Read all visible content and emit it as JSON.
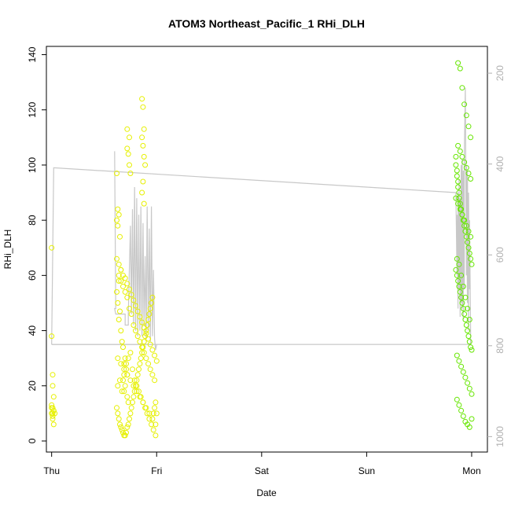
{
  "chart_data": {
    "type": "scatter",
    "title": "ATOM3 Northeast_Pacific_1 RHi_DLH",
    "xlabel": "Date",
    "ylabel": "RHi_DLH",
    "x_ticks": [
      "Thu",
      "Fri",
      "Sat",
      "Sun",
      "Mon"
    ],
    "xlim": [
      -0.05,
      4.15
    ],
    "ylim": [
      -4,
      143
    ],
    "y_ticks": [
      0,
      20,
      40,
      60,
      80,
      100,
      120,
      140
    ],
    "y2_ticks": [
      200,
      400,
      600,
      800,
      1000
    ],
    "y2lim": [
      1034,
      141
    ],
    "y2_reversed": true,
    "y2_color": "#b0b0b0",
    "grid": false,
    "colors": {
      "low_points": "#e6f000",
      "high_points": "#66e600",
      "line": "#c8c8c8"
    },
    "series": [
      {
        "points_x": [
          0.0,
          0.0,
          0.01,
          0.01,
          0.02,
          0.0,
          0.01,
          0.02,
          0.01,
          0.0,
          0.01,
          0.02,
          0.0,
          0.01,
          0.02,
          0.03,
          0.62,
          0.63,
          0.64,
          0.62,
          0.63,
          0.65,
          0.66,
          0.64,
          0.62,
          0.63,
          0.65,
          0.64,
          0.66,
          0.67,
          0.68,
          0.7,
          0.69,
          0.71,
          0.72,
          0.68,
          0.7,
          0.69,
          0.72,
          0.73,
          0.62,
          0.63,
          0.64,
          0.65,
          0.66,
          0.67,
          0.68,
          0.69,
          0.7,
          0.71,
          0.72,
          0.73,
          0.74,
          0.75,
          0.76,
          0.77,
          0.78,
          0.79,
          0.8,
          0.81,
          0.82,
          0.83,
          0.84,
          0.85,
          0.86,
          0.87,
          0.88,
          0.89,
          0.9,
          0.91,
          0.92,
          0.93,
          0.94,
          0.95,
          0.96,
          0.97,
          0.98,
          0.99,
          1.0,
          0.63,
          0.65,
          0.67,
          0.69,
          0.71,
          0.73,
          0.75,
          0.77,
          0.79,
          0.81,
          0.83,
          0.85,
          0.87,
          0.89,
          0.91,
          0.93,
          0.95,
          0.97,
          0.99,
          0.72,
          0.74,
          0.72,
          0.73,
          0.74,
          0.75,
          0.86,
          0.87,
          0.88,
          0.86,
          0.87,
          0.88,
          0.89,
          0.87,
          0.86,
          0.88,
          0.64,
          0.66,
          0.68,
          0.7,
          0.72,
          0.74,
          0.76,
          0.78,
          0.8,
          0.82,
          0.84,
          0.86,
          0.88,
          0.9,
          0.92,
          0.94,
          0.96,
          0.98,
          0.63,
          0.66,
          0.69,
          0.72,
          0.75,
          0.78,
          0.81,
          0.84,
          0.87,
          0.9,
          0.93,
          0.96,
          0.99,
          0.62,
          0.64,
          0.66,
          0.68,
          0.7,
          0.72,
          0.74,
          0.76,
          0.78,
          0.8,
          0.82,
          0.84,
          0.86,
          0.88,
          0.9,
          0.92,
          0.94,
          0.96,
          0.98,
          1.0
        ],
        "points_y": [
          70,
          38,
          24,
          20,
          16,
          13,
          12,
          11,
          10,
          10,
          9,
          11,
          12,
          8,
          6,
          10,
          97,
          84,
          82,
          80,
          78,
          74,
          62,
          58,
          54,
          50,
          47,
          44,
          40,
          36,
          34,
          30,
          28,
          26,
          24,
          22,
          20,
          18,
          16,
          14,
          12,
          10,
          8,
          6,
          5,
          4,
          3,
          2,
          2,
          3,
          5,
          6,
          8,
          10,
          12,
          14,
          16,
          18,
          20,
          22,
          24,
          26,
          28,
          30,
          32,
          34,
          36,
          38,
          40,
          42,
          44,
          46,
          48,
          50,
          52,
          10,
          12,
          14,
          10,
          20,
          22,
          18,
          24,
          28,
          30,
          32,
          26,
          22,
          20,
          18,
          16,
          14,
          12,
          10,
          8,
          6,
          4,
          2,
          113,
          110,
          106,
          104,
          100,
          97,
          124,
          121,
          113,
          110,
          107,
          103,
          100,
          94,
          90,
          86,
          60,
          58,
          56,
          54,
          52,
          48,
          46,
          42,
          40,
          38,
          36,
          34,
          32,
          30,
          28,
          26,
          24,
          22,
          30,
          28,
          26,
          24,
          22,
          20,
          18,
          16,
          14,
          12,
          10,
          8,
          6,
          66,
          64,
          62,
          60,
          59,
          57,
          55,
          53,
          51,
          49,
          47,
          45,
          43,
          41,
          39,
          37,
          35,
          33,
          31,
          29
        ],
        "color": "#e6f000"
      },
      {
        "points_x": [
          3.85,
          3.85,
          3.86,
          3.86,
          3.87,
          3.87,
          3.88,
          3.88,
          3.89,
          3.9,
          3.91,
          3.92,
          3.93,
          3.94,
          3.95,
          3.96,
          3.97,
          3.98,
          3.99,
          4.0,
          3.85,
          3.86,
          3.87,
          3.88,
          3.89,
          3.9,
          3.91,
          3.92,
          3.93,
          3.94,
          3.95,
          3.96,
          3.97,
          3.98,
          3.99,
          4.0,
          3.86,
          3.88,
          3.9,
          3.92,
          3.94,
          3.96,
          3.98,
          4.0,
          3.86,
          3.88,
          3.9,
          3.92,
          3.94,
          3.96,
          3.98,
          4.0,
          3.87,
          3.89,
          3.91,
          3.93,
          3.95,
          3.97,
          3.99,
          3.87,
          3.89,
          3.91,
          3.93,
          3.95,
          3.97,
          3.99,
          3.85,
          3.87,
          3.89,
          3.91,
          3.93,
          3.95,
          3.97,
          3.99,
          3.86,
          3.88,
          3.9,
          3.92,
          3.94,
          3.96,
          3.98
        ],
        "points_y": [
          103,
          100,
          98,
          96,
          94,
          92,
          90,
          88,
          86,
          84,
          82,
          80,
          78,
          76,
          74,
          72,
          70,
          68,
          66,
          64,
          62,
          60,
          58,
          56,
          54,
          52,
          50,
          48,
          46,
          44,
          42,
          40,
          38,
          36,
          34,
          33,
          31,
          29,
          27,
          25,
          23,
          21,
          19,
          17,
          15,
          13,
          11,
          9,
          7,
          6,
          5,
          8,
          137,
          135,
          128,
          122,
          118,
          114,
          110,
          107,
          105,
          103,
          101,
          99,
          97,
          95,
          88,
          86,
          84,
          82,
          80,
          78,
          76,
          74,
          66,
          64,
          60,
          56,
          52,
          48,
          44
        ],
        "color": "#66e600"
      }
    ],
    "line_series": {
      "x": [
        0.0,
        0.02,
        3.85,
        3.86,
        3.86,
        3.87,
        3.87,
        3.88,
        3.88,
        3.89,
        3.89,
        3.9,
        3.9,
        3.91,
        3.91,
        3.92,
        3.92,
        3.93,
        3.93,
        3.94,
        3.95,
        3.95,
        3.96,
        3.96,
        3.97,
        3.97,
        3.98,
        3.98,
        3.99,
        3.99,
        3.99,
        0.0,
        0.0
      ],
      "y": [
        35,
        99,
        90,
        60,
        82,
        48,
        90,
        55,
        95,
        45,
        88,
        50,
        100,
        48,
        102,
        44,
        98,
        55,
        104,
        128,
        60,
        100,
        50,
        98,
        40,
        90,
        55,
        80,
        40,
        40,
        35,
        35,
        35
      ],
      "x_b": [
        0.6,
        0.61,
        0.6,
        0.61,
        0.7,
        0.7,
        0.73,
        0.73,
        0.75,
        0.76,
        0.77,
        0.78,
        0.79,
        0.8,
        0.81,
        0.82,
        0.83,
        0.84,
        0.85,
        0.86,
        0.87,
        0.88,
        0.89,
        0.9,
        0.91,
        0.92,
        0.93,
        0.94,
        0.95,
        0.96,
        0.97,
        0.98,
        0.99,
        1.0,
        1.0,
        0.0,
        0.0
      ],
      "y_b": [
        105,
        48,
        48,
        46,
        46,
        42,
        42,
        46,
        78,
        46,
        84,
        42,
        92,
        40,
        88,
        38,
        82,
        40,
        85,
        38,
        79,
        42,
        67,
        37,
        85,
        40,
        77,
        36,
        85,
        38,
        62,
        37,
        33,
        35,
        35,
        35,
        35
      ]
    }
  }
}
